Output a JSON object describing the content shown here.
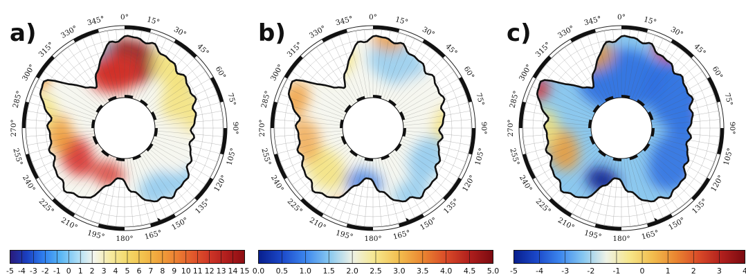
{
  "panels": [
    {
      "label": "a)",
      "colormap": "jet-anomaly",
      "colorbar_ticks": [
        "-5",
        "-4",
        "-3",
        "-2",
        "-1",
        "0",
        "1",
        "2",
        "3",
        "4",
        "5",
        "6",
        "7",
        "8",
        "9",
        "10",
        "11",
        "12",
        "13",
        "14",
        "15"
      ],
      "longitude_labels": [
        "0°",
        "15°",
        "30°",
        "45°",
        "60°",
        "75°",
        "90°",
        "105°",
        "120°",
        "135°",
        "150°",
        "165°",
        "180°",
        "195°",
        "210°",
        "225°",
        "240°",
        "255°",
        "270°",
        "285°",
        "300°",
        "315°",
        "330°",
        "345°"
      ]
    },
    {
      "label": "b)",
      "colormap": "jet",
      "colorbar_ticks": [
        "0.0",
        "0.5",
        "1.0",
        "1.5",
        "2.0",
        "2.5",
        "3.0",
        "3.5",
        "4.0",
        "4.5",
        "5.0"
      ],
      "longitude_labels": [
        "0°",
        "15°",
        "30°",
        "45°",
        "60°",
        "75°",
        "90°",
        "105°",
        "120°",
        "135°",
        "150°",
        "165°",
        "180°",
        "195°",
        "210°",
        "225°",
        "240°",
        "255°",
        "270°",
        "285°",
        "300°",
        "315°",
        "330°",
        "345°"
      ]
    },
    {
      "label": "c)",
      "colormap": "jet",
      "colorbar_ticks": [
        "-5",
        "-4",
        "-3",
        "-2",
        "-1",
        "0",
        "1",
        "2",
        "3",
        "4"
      ],
      "longitude_labels": [
        "0°",
        "15°",
        "30°",
        "45°",
        "60°",
        "75°",
        "90°",
        "105°",
        "120°",
        "135°",
        "150°",
        "165°",
        "180°",
        "195°",
        "210°",
        "225°",
        "240°",
        "255°",
        "270°",
        "285°",
        "300°",
        "315°",
        "330°",
        "345°"
      ]
    }
  ],
  "colors": {
    "dark_blue": "#0a1f8f",
    "blue": "#2f6fe0",
    "light_blue": "#8cc8ee",
    "white": "#f6f7f0",
    "yellow": "#f3e27a",
    "orange": "#ef9a33",
    "red": "#d6322b",
    "dark_red": "#8c0d12",
    "coast": "#111111"
  }
}
